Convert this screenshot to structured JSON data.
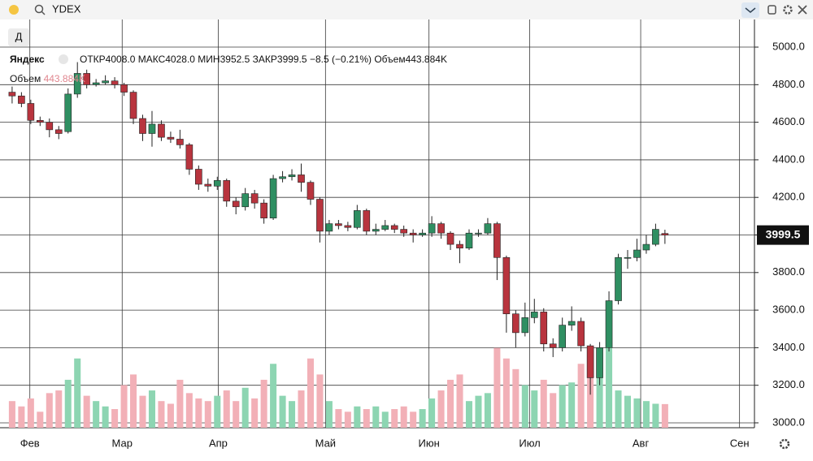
{
  "header": {
    "symbol": "YDEX",
    "period_button": "Д"
  },
  "chart_data": {
    "type": "candlestick",
    "instrument": "Яндекс",
    "legend": {
      "open_label": "ОТКР",
      "open": "4008.0",
      "high_label": "МАКС",
      "high": "4028.0",
      "low_label": "МИН",
      "low": "3952.5",
      "close_label": "ЗАКР",
      "close": "3999.5",
      "change": "−8.5 (−0.21%)",
      "volume_label": "Объем",
      "volume": "443.884K"
    },
    "open": [
      4760,
      4740,
      4700,
      4610,
      4600,
      4560,
      4550,
      4750,
      4860,
      4800,
      4810,
      4820,
      4800,
      4760,
      4620,
      4540,
      4590,
      4520,
      4510,
      4480,
      4350,
      4270,
      4260,
      4290,
      4180,
      4150,
      4220,
      4170,
      4090,
      4300,
      4310,
      4320,
      4280,
      4190,
      4020,
      4060,
      4050,
      4040,
      4130,
      4020,
      4030,
      4050,
      4030,
      4010,
      4000,
      4010,
      4060,
      4010,
      3950,
      3930,
      4010,
      4010,
      4060,
      3880,
      3580,
      3480,
      3560,
      3590,
      3420,
      3400,
      3520,
      3540,
      3410,
      3240,
      3400,
      3650,
      3880,
      3880,
      3920,
      3950,
      4008
    ],
    "high": [
      4790,
      4760,
      4720,
      4630,
      4620,
      4580,
      4780,
      4920,
      4880,
      4830,
      4850,
      4840,
      4810,
      4770,
      4640,
      4660,
      4610,
      4550,
      4560,
      4490,
      4370,
      4300,
      4310,
      4300,
      4200,
      4250,
      4240,
      4190,
      4320,
      4340,
      4350,
      4380,
      4290,
      4200,
      4080,
      4080,
      4070,
      4160,
      4140,
      4060,
      4080,
      4060,
      4050,
      4030,
      4030,
      4100,
      4070,
      4020,
      3970,
      4030,
      4030,
      4090,
      4070,
      3890,
      3600,
      3640,
      3660,
      3610,
      3450,
      3560,
      3620,
      3560,
      3420,
      3430,
      3700,
      3900,
      3920,
      3980,
      4000,
      4060,
      4028
    ],
    "low": [
      4700,
      4680,
      4590,
      4580,
      4520,
      4510,
      4540,
      4730,
      4780,
      4790,
      4800,
      4780,
      4740,
      4590,
      4500,
      4470,
      4500,
      4490,
      4460,
      4320,
      4240,
      4230,
      4240,
      4150,
      4110,
      4130,
      4140,
      4060,
      4080,
      4280,
      4290,
      4230,
      4160,
      3960,
      4000,
      4030,
      4020,
      4030,
      4000,
      4000,
      4020,
      4010,
      3990,
      3960,
      3990,
      3990,
      3980,
      3920,
      3850,
      3920,
      3990,
      4000,
      3760,
      3480,
      3400,
      3460,
      3530,
      3380,
      3350,
      3380,
      3490,
      3380,
      3150,
      3200,
      3380,
      3630,
      3820,
      3860,
      3900,
      3940,
      3952.5
    ],
    "close": [
      4740,
      4700,
      4610,
      4600,
      4560,
      4540,
      4750,
      4860,
      4800,
      4810,
      4820,
      4800,
      4760,
      4620,
      4540,
      4590,
      4520,
      4510,
      4480,
      4350,
      4270,
      4260,
      4290,
      4180,
      4150,
      4220,
      4170,
      4090,
      4300,
      4310,
      4320,
      4280,
      4190,
      4020,
      4060,
      4050,
      4040,
      4130,
      4020,
      4030,
      4050,
      4030,
      4010,
      4000,
      4010,
      4060,
      4010,
      3950,
      3930,
      4010,
      4010,
      4060,
      3880,
      3580,
      3480,
      3560,
      3590,
      3420,
      3400,
      3520,
      3540,
      3410,
      3240,
      3400,
      3650,
      3880,
      3880,
      3920,
      3950,
      4030,
      3999.5
    ],
    "volume": [
      500,
      400,
      550,
      300,
      650,
      700,
      900,
      1300,
      600,
      500,
      400,
      350,
      800,
      1000,
      600,
      700,
      500,
      450,
      900,
      650,
      550,
      500,
      600,
      700,
      500,
      750,
      550,
      900,
      1200,
      600,
      500,
      700,
      1300,
      1000,
      500,
      350,
      300,
      400,
      350,
      400,
      300,
      350,
      400,
      300,
      350,
      550,
      700,
      900,
      1000,
      500,
      600,
      650,
      1500,
      1300,
      1100,
      800,
      700,
      900,
      650,
      800,
      850,
      1200,
      1500,
      1400,
      1600,
      700,
      600,
      550,
      500,
      450,
      443.884
    ],
    "up_color": "#2f8f62",
    "down_color": "#b8343e",
    "volume_up_color": "#8dd5b2",
    "volume_down_color": "#f2b0b7",
    "xlim": [
      -1.3,
      79.6
    ],
    "xticks": [
      {
        "value": 1.9,
        "label": "Фев"
      },
      {
        "value": 11.8,
        "label": "Мар"
      },
      {
        "value": 22.1,
        "label": "Апр"
      },
      {
        "value": 33.6,
        "label": "Май"
      },
      {
        "value": 44.7,
        "label": "Июн"
      },
      {
        "value": 55.5,
        "label": "Июл"
      },
      {
        "value": 67.4,
        "label": "Авг"
      },
      {
        "value": 78.0,
        "label": "Сен"
      }
    ],
    "ylim": [
      2974,
      5147
    ],
    "yticks": [
      {
        "value": 3000,
        "label": "3000.0"
      },
      {
        "value": 3200,
        "label": "3200.0"
      },
      {
        "value": 3400,
        "label": "3400.0"
      },
      {
        "value": 3600,
        "label": "3600.0"
      },
      {
        "value": 3800,
        "label": "3800.0"
      },
      {
        "value": 4000,
        "label": "4000.0"
      },
      {
        "value": 4200,
        "label": "4200.0"
      },
      {
        "value": 4400,
        "label": "4400.0"
      },
      {
        "value": 4600,
        "label": "4600.0"
      },
      {
        "value": 4800,
        "label": "4800.0"
      },
      {
        "value": 5000,
        "label": "5000.0"
      }
    ],
    "grid": true
  }
}
